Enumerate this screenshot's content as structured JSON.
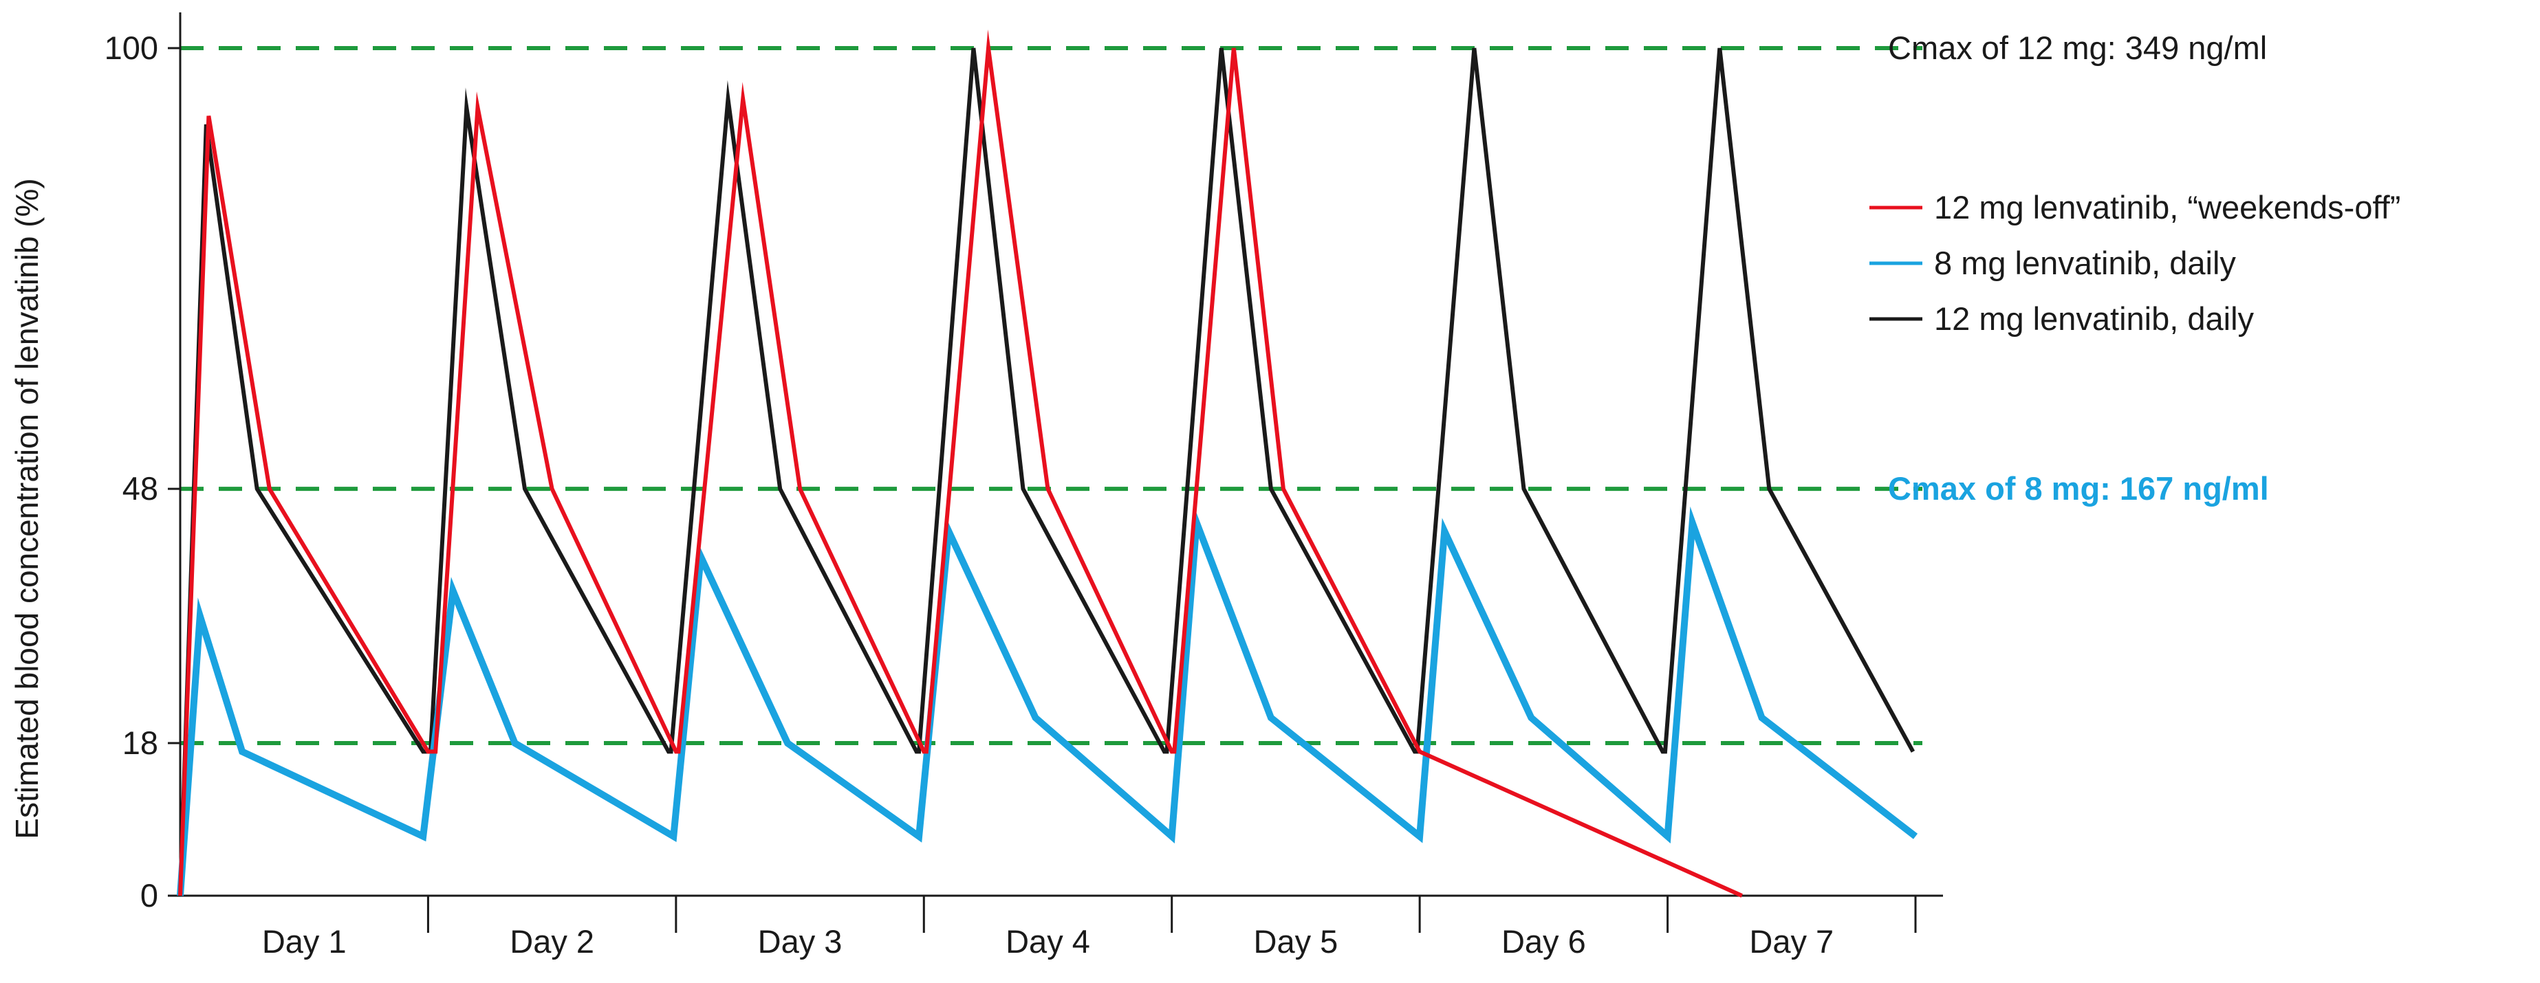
{
  "chart_data": {
    "type": "line",
    "title": "",
    "xlabel": "",
    "ylabel": "Estimated blood concentration of lenvatinib (%)",
    "xlim": [
      0,
      7
    ],
    "ylim": [
      0,
      100
    ],
    "day_labels": [
      "Day 1",
      "Day 2",
      "Day 3",
      "Day 4",
      "Day 5",
      "Day 6",
      "Day 7"
    ],
    "y_ticks": [
      {
        "value": 0,
        "label": "0"
      },
      {
        "value": 18,
        "label": "18"
      },
      {
        "value": 48,
        "label": "48"
      },
      {
        "value": 100,
        "label": "100"
      }
    ],
    "reference_lines": [
      {
        "value": 100,
        "color": "#1e9a3c",
        "label": "Cmax of 12 mg: 349 ng/ml",
        "label_color": "#1a1a1a",
        "bold": false
      },
      {
        "value": 48,
        "color": "#1e9a3c",
        "label": "Cmax of 8 mg: 167 ng/ml",
        "label_color": "#1aa3e0",
        "bold": true
      },
      {
        "value": 18,
        "color": "#1e9a3c",
        "label": "",
        "label_color": "#1a1a1a",
        "bold": false
      }
    ],
    "series": [
      {
        "name": "12 mg lenvatinib, daily",
        "legend_label": "12 mg lenvatinib, daily",
        "color": "#1a1a1a",
        "points": [
          [
            0,
            0
          ],
          [
            0.105,
            91
          ],
          [
            0.31,
            48
          ],
          [
            0.98,
            17
          ],
          [
            1.01,
            17
          ],
          [
            1.155,
            93
          ],
          [
            1.39,
            48
          ],
          [
            1.97,
            17
          ],
          [
            1.98,
            17
          ],
          [
            2.21,
            94
          ],
          [
            2.42,
            48
          ],
          [
            2.97,
            17
          ],
          [
            2.98,
            17
          ],
          [
            3.2,
            100
          ],
          [
            3.4,
            48
          ],
          [
            3.97,
            17
          ],
          [
            3.98,
            17
          ],
          [
            4.2,
            100
          ],
          [
            4.4,
            48
          ],
          [
            4.98,
            17
          ],
          [
            4.99,
            17
          ],
          [
            5.22,
            100
          ],
          [
            5.42,
            48
          ],
          [
            5.98,
            17
          ],
          [
            5.99,
            17
          ],
          [
            6.21,
            100
          ],
          [
            6.41,
            48
          ],
          [
            6.99,
            17
          ]
        ]
      },
      {
        "name": "8 mg lenvatinib, daily",
        "legend_label": " 8 mg lenvatinib, daily",
        "color": "#1aa3e0",
        "points": [
          [
            0,
            0
          ],
          [
            0.08,
            33
          ],
          [
            0.25,
            17
          ],
          [
            0.98,
            7
          ],
          [
            1.1,
            36
          ],
          [
            1.35,
            18
          ],
          [
            1.99,
            7
          ],
          [
            2.1,
            40
          ],
          [
            2.45,
            18
          ],
          [
            2.98,
            7
          ],
          [
            3.1,
            43
          ],
          [
            3.45,
            21
          ],
          [
            4.0,
            7
          ],
          [
            4.1,
            44
          ],
          [
            4.4,
            21
          ],
          [
            5.0,
            7
          ],
          [
            5.1,
            43
          ],
          [
            5.45,
            21
          ],
          [
            6.0,
            7
          ],
          [
            6.1,
            44
          ],
          [
            6.38,
            21
          ],
          [
            7.0,
            7
          ]
        ]
      },
      {
        "name": "12 mg lenvatinib, “weekends-off”",
        "legend_label": "12 mg lenvatinib,  “weekends-off”",
        "color": "#e8101e",
        "points": [
          [
            0,
            0
          ],
          [
            0.115,
            92
          ],
          [
            0.36,
            48
          ],
          [
            1.0,
            17
          ],
          [
            1.03,
            17
          ],
          [
            1.2,
            93
          ],
          [
            1.5,
            48
          ],
          [
            2.0,
            17
          ],
          [
            2.01,
            17
          ],
          [
            2.27,
            94
          ],
          [
            2.5,
            48
          ],
          [
            3.0,
            17
          ],
          [
            3.01,
            17
          ],
          [
            3.26,
            100
          ],
          [
            3.5,
            48
          ],
          [
            4.0,
            17
          ],
          [
            4.01,
            17
          ],
          [
            4.25,
            100
          ],
          [
            4.45,
            48
          ],
          [
            5.0,
            17
          ],
          [
            6.3,
            0
          ]
        ]
      }
    ]
  }
}
